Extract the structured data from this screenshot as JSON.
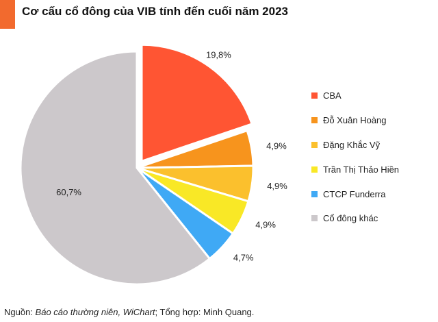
{
  "header": {
    "title": "Cơ cấu cổ đông của VIB tính đến cuối năm 2023",
    "accent_color": "#f26a2e"
  },
  "chart_data": {
    "type": "pie",
    "title": "Cơ cấu cổ đông của VIB tính đến cuối năm 2023",
    "legend_position": "right",
    "exploded_slice": "CBA",
    "slices": [
      {
        "name": "CBA",
        "value": 19.8,
        "label": "19,8%",
        "color": "#ff5533"
      },
      {
        "name": "Đỗ Xuân Hoàng",
        "value": 4.9,
        "label": "4,9%",
        "color": "#f7941d"
      },
      {
        "name": "Đặng Khắc Vỹ",
        "value": 4.9,
        "label": "4,9%",
        "color": "#fbc02d"
      },
      {
        "name": "Trần Thị Thảo Hiền",
        "value": 4.9,
        "label": "4,9%",
        "color": "#f9e826"
      },
      {
        "name": "CTCP Funderra",
        "value": 4.7,
        "label": "4,7%",
        "color": "#3fa9f5"
      },
      {
        "name": "Cổ đông khác",
        "value": 60.7,
        "label": "60,7%",
        "color": "#ccc8cb"
      }
    ]
  },
  "footer": {
    "source_prefix": "Nguồn: ",
    "source_italic": "Báo cáo thường niên, WiChart",
    "source_suffix": "; Tổng hợp: Minh Quang."
  }
}
